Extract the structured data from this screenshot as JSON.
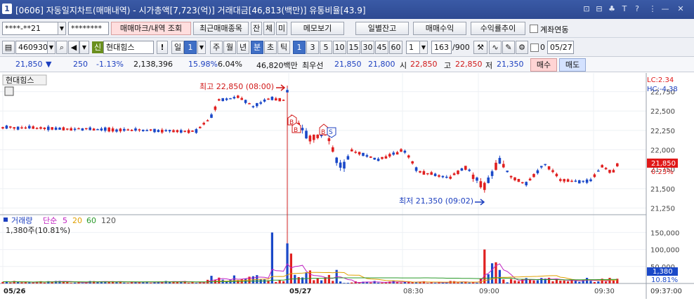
{
  "window": {
    "number": "1",
    "title": "[0606] 자동일지차트(매매내역) - 시가총액[7,723(억)] 거래대금[46,813(백만)] 유통비율[43.9]",
    "window_buttons": [
      "⊡",
      "⊟",
      "♣",
      "T",
      "?",
      "⋮",
      "—",
      "✕"
    ]
  },
  "toolbar1": {
    "account": "****-**21",
    "password": "********",
    "tab_trade": "매매마크/내역 조회",
    "tab_recent": "최근매매종목",
    "btn_jan": "잔",
    "btn_che": "체",
    "btn_mi": "미",
    "btn_memo": "메모보기",
    "btn_daily": "일별잔고",
    "btn_profit": "매매수익",
    "btn_return": "수익률추이",
    "link_label": "계좌연동"
  },
  "toolbar2": {
    "code": "460930",
    "credit_badge": "신",
    "stock_name": "현대힘스",
    "warn": "!",
    "period_il": "일",
    "period_num": "1",
    "periods": [
      "주",
      "월",
      "년",
      "분",
      "초",
      "틱"
    ],
    "minutes": [
      "1",
      "3",
      "5",
      "10",
      "15",
      "30",
      "45",
      "60"
    ],
    "selected_minute": "1",
    "count_select": "1",
    "count": "163",
    "count_total": "/900",
    "date_check_value": "0",
    "date": "05/27"
  },
  "quote": {
    "price": "21,850",
    "arrow": "▼",
    "change": "250",
    "change_pct": "-1.13%",
    "volume": "2,138,396",
    "turnover_pct": "15.98%",
    "ratio_pct": "6.04%",
    "amount": "46,820백만",
    "best_label": "최우선",
    "best_ask": "21,850",
    "best_bid": "21,800",
    "open_label": "시",
    "open": "22,850",
    "high_label": "고",
    "high": "22,850",
    "low_label": "저",
    "low": "21,350",
    "buy_btn": "매수",
    "sell_btn": "매도"
  },
  "chart": {
    "stock_label": "현대힘스",
    "lc_label": "LC:2.34",
    "hc_label": "HC:-4.38",
    "max_annotation": "최고 22,850 (08:00)",
    "min_annotation": "최저 21,350 (09:02)",
    "price_badge": "21,850",
    "pct_badge": "0.23%",
    "volume_title": "거래량",
    "ma_label": "단순",
    "ma_periods": [
      "5",
      "20",
      "60",
      "120"
    ],
    "ma_colors": [
      "#c020c0",
      "#e0a000",
      "#2a9a2a",
      "#555555"
    ],
    "volume_info": "1,380주(10.81%)",
    "vol_badge": "1,380",
    "vol_pct_badge": "10.81%",
    "time_label": "09:37:00",
    "trade_marks": [
      "B",
      "B",
      "B",
      "S"
    ]
  },
  "chart_data": {
    "type": "candlestick",
    "price_ticks": [
      "22,750",
      "22,500",
      "22,250",
      "22,000",
      "21,750",
      "21,500",
      "21,250"
    ],
    "price_tick_values": [
      22750,
      22500,
      22250,
      22000,
      21750,
      21500,
      21250
    ],
    "price_range": [
      21200,
      22900
    ],
    "volume_ticks": [
      "150,000",
      "100,000",
      "50,000"
    ],
    "volume_tick_values": [
      150000,
      100000,
      50000
    ],
    "volume_range": [
      0,
      190000
    ],
    "x_labels": [
      "05/26",
      "05/27",
      "08:30",
      "09:00",
      "09:30"
    ],
    "up_color": "#e02020",
    "down_color": "#1a48c8"
  }
}
